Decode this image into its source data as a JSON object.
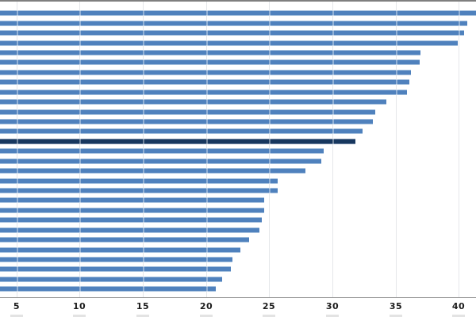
{
  "chart_data": {
    "type": "bar",
    "orientation": "horizontal",
    "title": "",
    "xlabel": "",
    "ylabel": "",
    "legend_position": "none",
    "grid": true,
    "x_ticks": [
      5,
      10,
      15,
      20,
      25,
      30,
      35,
      40
    ],
    "visible_x_range": [
      3.7,
      41.4
    ],
    "values": [
      41.6,
      40.7,
      40.4,
      39.9,
      37.0,
      36.9,
      36.2,
      36.1,
      35.9,
      34.3,
      33.4,
      33.2,
      32.4,
      31.8,
      29.3,
      29.1,
      27.9,
      25.7,
      25.7,
      24.6,
      24.6,
      24.4,
      24.2,
      23.4,
      22.7,
      22.1,
      22.0,
      21.3,
      20.8
    ],
    "highlight_index": 13,
    "highlight_value": 31.8,
    "bar_count": 29,
    "clipping": {
      "left_edge_cropped": true,
      "first_bar_cropped_right": true,
      "category_labels_visible": false
    },
    "colors": {
      "bar": "#4f81bd",
      "bar_edge": "#a3bfdd",
      "highlight_bar": "#17375e",
      "highlight_bar_edge": "#6d82a0",
      "gridline": "#d5d8dd",
      "axis_line": "#999999",
      "top_border": "#7f7f7f",
      "tick_label": "#1c1c1c",
      "bottom_mark": "#d9d9d9",
      "background": "#ffffff"
    }
  }
}
